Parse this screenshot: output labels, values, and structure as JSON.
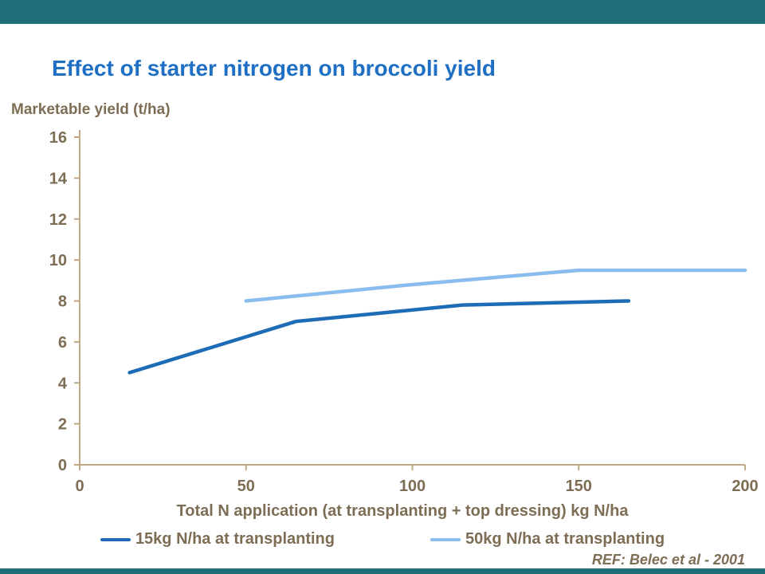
{
  "page": {
    "title": "Effect of starter nitrogen on broccoli yield",
    "y_axis_title": "Marketable yield (t/ha)",
    "x_axis_title": "Total N application (at transplanting + top dressing) kg N/ha",
    "reference": "REF: Belec et al - 2001"
  },
  "colors": {
    "top_bar": "#1F6E79",
    "title": "#1F6FC4",
    "axis_text": "#7E6D55",
    "axis_line": "#BFA888",
    "reference_text": "#7E6D55",
    "series1": "#1E6CB5",
    "series2": "#8BBCEE"
  },
  "chart_data": {
    "type": "line",
    "title": "Effect of starter nitrogen on broccoli yield",
    "xlabel": "Total N application (at transplanting + top dressing) kg N/ha",
    "ylabel": "Marketable yield (t/ha)",
    "xlim": [
      0,
      200
    ],
    "ylim": [
      0,
      16
    ],
    "x_ticks": [
      0,
      50,
      100,
      150,
      200
    ],
    "y_ticks": [
      0,
      2,
      4,
      6,
      8,
      10,
      12,
      14,
      16
    ],
    "grid": false,
    "legend_position": "bottom",
    "series": [
      {
        "name": "15kg N/ha at transplanting",
        "color": "#1E6CB5",
        "points": [
          [
            15,
            4.5
          ],
          [
            65,
            7.0
          ],
          [
            115,
            7.8
          ],
          [
            165,
            8.0
          ]
        ]
      },
      {
        "name": "50kg N/ha at transplanting",
        "color": "#8BBCEE",
        "points": [
          [
            50,
            8.0
          ],
          [
            100,
            8.8
          ],
          [
            150,
            9.5
          ],
          [
            200,
            9.5
          ]
        ]
      }
    ],
    "annotation": "REF: Belec et al - 2001"
  }
}
